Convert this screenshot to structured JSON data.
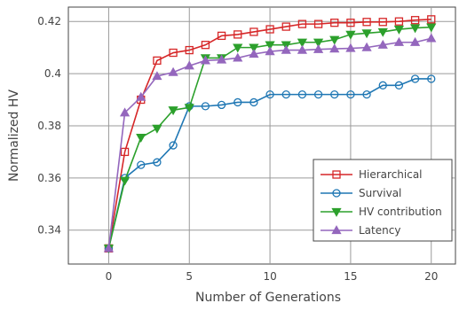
{
  "chart_data": {
    "type": "line",
    "title": "",
    "xlabel": "Number of Generations",
    "ylabel": "Normalized HV",
    "xlim": [
      -2.5,
      21.5
    ],
    "ylim": [
      0.327,
      0.4255
    ],
    "xticks": [
      0,
      5,
      10,
      15,
      20
    ],
    "yticks": [
      0.34,
      0.36,
      0.38,
      0.4,
      0.42
    ],
    "ytick_labels": [
      "0.34",
      "0.36",
      "0.38",
      "0.4",
      "0.42"
    ],
    "grid": true,
    "legend_position": "bottom-right",
    "x": [
      0,
      1,
      2,
      3,
      4,
      5,
      6,
      7,
      8,
      9,
      10,
      11,
      12,
      13,
      14,
      15,
      16,
      17,
      18,
      19,
      20
    ],
    "series": [
      {
        "name": "Hierarchical",
        "color": "#d62728",
        "marker": "square",
        "values": [
          0.333,
          0.37,
          0.39,
          0.405,
          0.408,
          0.409,
          0.411,
          0.4145,
          0.415,
          0.416,
          0.417,
          0.418,
          0.419,
          0.419,
          0.4195,
          0.4195,
          0.4198,
          0.4198,
          0.42,
          0.4205,
          0.4208
        ]
      },
      {
        "name": "Survival",
        "color": "#1f77b4",
        "marker": "circle",
        "values": [
          0.333,
          0.36,
          0.365,
          0.366,
          0.3725,
          0.3875,
          0.3875,
          0.388,
          0.389,
          0.389,
          0.392,
          0.392,
          0.392,
          0.392,
          0.392,
          0.392,
          0.392,
          0.3955,
          0.3955,
          0.398,
          0.398
        ]
      },
      {
        "name": "HV contribution",
        "color": "#2ca02c",
        "marker": "triangle-down",
        "values": [
          0.333,
          0.359,
          0.3755,
          0.379,
          0.386,
          0.387,
          0.406,
          0.406,
          0.41,
          0.41,
          0.411,
          0.411,
          0.412,
          0.412,
          0.413,
          0.415,
          0.4155,
          0.416,
          0.417,
          0.4175,
          0.4178
        ]
      },
      {
        "name": "Latency",
        "color": "#9467bd",
        "marker": "triangle-up",
        "values": [
          0.333,
          0.385,
          0.391,
          0.399,
          0.4005,
          0.403,
          0.405,
          0.4053,
          0.406,
          0.4075,
          0.4085,
          0.409,
          0.409,
          0.4093,
          0.4095,
          0.4097,
          0.41,
          0.411,
          0.412,
          0.412,
          0.4135
        ]
      }
    ]
  }
}
